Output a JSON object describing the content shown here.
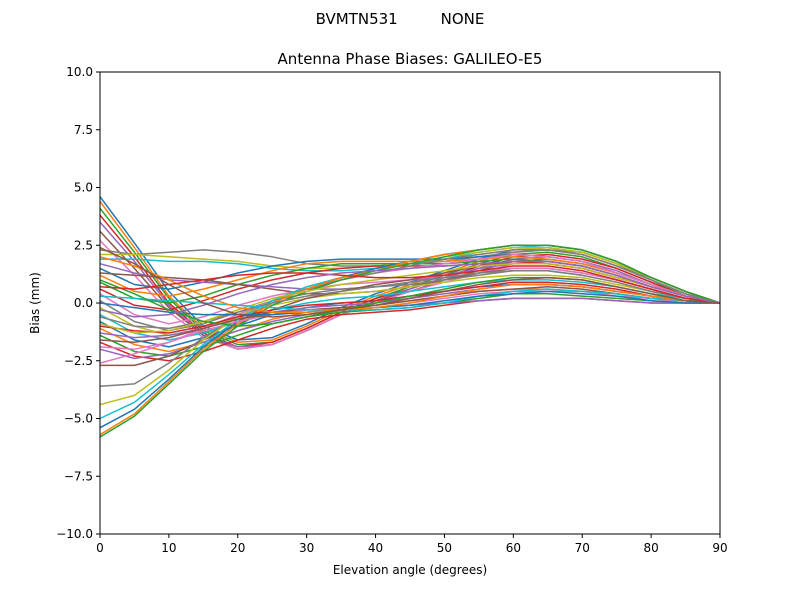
{
  "chart_data": {
    "type": "line",
    "suptitle": "BVMTN531         NONE",
    "title": "Antenna Phase Biases: GALILEO-E5",
    "xlabel": "Elevation angle (degrees)",
    "ylabel": "Bias (mm)",
    "xlim": [
      0,
      90
    ],
    "ylim": [
      -10,
      10
    ],
    "xticks": [
      "0",
      "10",
      "20",
      "30",
      "40",
      "50",
      "60",
      "70",
      "80",
      "90"
    ],
    "yticks": [
      "−10.0",
      "−7.5",
      "−5.0",
      "−2.5",
      "0.0",
      "2.5",
      "5.0",
      "7.5",
      "10.0"
    ],
    "grid": false,
    "x": [
      0,
      5,
      10,
      15,
      20,
      25,
      30,
      35,
      40,
      45,
      50,
      55,
      60,
      65,
      70,
      75,
      80,
      85,
      90
    ],
    "palette": [
      "#1f77b4",
      "#ff7f0e",
      "#2ca02c",
      "#d62728",
      "#9467bd",
      "#8c564b",
      "#e377c2",
      "#7f7f7f",
      "#bcbd22",
      "#17becf"
    ],
    "series": [
      {
        "values": [
          4.6,
          2.6,
          0.5,
          -1.0,
          -1.6,
          -1.5,
          -0.9,
          -0.2,
          0.4,
          0.9,
          1.4,
          1.9,
          2.3,
          2.4,
          2.2,
          1.7,
          1.0,
          0.4,
          0.0
        ]
      },
      {
        "values": [
          4.4,
          2.4,
          0.3,
          -1.1,
          -1.7,
          -1.6,
          -1.0,
          -0.3,
          0.3,
          0.8,
          1.3,
          1.8,
          2.2,
          2.3,
          2.1,
          1.6,
          1.0,
          0.4,
          0.0
        ]
      },
      {
        "values": [
          4.1,
          2.2,
          0.2,
          -1.2,
          -1.8,
          -1.7,
          -1.1,
          -0.4,
          0.2,
          0.7,
          1.2,
          1.7,
          2.1,
          2.2,
          2.0,
          1.5,
          0.9,
          0.4,
          0.0
        ]
      },
      {
        "values": [
          3.8,
          2.0,
          0.0,
          -1.3,
          -1.9,
          -1.7,
          -1.1,
          -0.4,
          0.2,
          0.6,
          1.1,
          1.6,
          2.0,
          2.1,
          1.9,
          1.5,
          0.9,
          0.3,
          0.0
        ]
      },
      {
        "values": [
          3.5,
          1.8,
          -0.1,
          -1.4,
          -1.9,
          -1.8,
          -1.2,
          -0.5,
          0.1,
          0.6,
          1.1,
          1.5,
          1.9,
          2.0,
          1.8,
          1.4,
          0.8,
          0.3,
          0.0
        ]
      },
      {
        "values": [
          3.1,
          1.5,
          -0.2,
          -1.4,
          -2.0,
          -1.8,
          -1.2,
          -0.5,
          0.1,
          0.5,
          1.0,
          1.4,
          1.8,
          1.9,
          1.7,
          1.3,
          0.8,
          0.3,
          0.0
        ]
      },
      {
        "values": [
          2.7,
          1.2,
          -0.4,
          -1.5,
          -2.0,
          -1.8,
          -1.2,
          -0.5,
          0.0,
          0.5,
          0.9,
          1.3,
          1.7,
          1.8,
          1.6,
          1.2,
          0.7,
          0.3,
          0.0
        ]
      },
      {
        "values": [
          2.3,
          2.1,
          2.2,
          2.3,
          2.2,
          2.0,
          1.7,
          1.6,
          1.6,
          1.7,
          1.8,
          2.0,
          2.2,
          2.3,
          2.2,
          1.7,
          1.0,
          0.4,
          0.0
        ]
      },
      {
        "values": [
          2.1,
          2.1,
          2.0,
          1.9,
          1.8,
          1.6,
          1.5,
          1.5,
          1.6,
          1.7,
          1.9,
          2.1,
          2.3,
          2.4,
          2.2,
          1.7,
          1.1,
          0.5,
          0.0
        ]
      },
      {
        "values": [
          1.9,
          1.9,
          1.8,
          1.8,
          1.7,
          1.5,
          1.4,
          1.4,
          1.5,
          1.7,
          1.9,
          2.2,
          2.4,
          2.5,
          2.3,
          1.8,
          1.1,
          0.5,
          0.0
        ]
      },
      {
        "values": [
          1.5,
          0.8,
          0.6,
          0.9,
          1.3,
          1.6,
          1.8,
          1.9,
          1.9,
          1.9,
          1.9,
          2.0,
          2.1,
          2.0,
          1.8,
          1.3,
          0.8,
          0.3,
          0.0
        ]
      },
      {
        "values": [
          1.2,
          0.5,
          0.3,
          0.6,
          1.0,
          1.4,
          1.7,
          1.8,
          1.8,
          1.8,
          1.8,
          1.9,
          2.0,
          1.9,
          1.7,
          1.3,
          0.8,
          0.3,
          0.0
        ]
      },
      {
        "values": [
          0.9,
          0.2,
          0.0,
          0.3,
          0.8,
          1.2,
          1.5,
          1.7,
          1.7,
          1.7,
          1.7,
          1.8,
          1.9,
          1.8,
          1.6,
          1.2,
          0.7,
          0.3,
          0.0
        ]
      },
      {
        "values": [
          0.6,
          -0.1,
          -0.3,
          0.1,
          0.6,
          1.0,
          1.3,
          1.5,
          1.6,
          1.6,
          1.6,
          1.7,
          1.8,
          1.7,
          1.5,
          1.1,
          0.7,
          0.3,
          0.0
        ]
      },
      {
        "values": [
          1.7,
          1.3,
          1.0,
          0.9,
          0.8,
          0.7,
          0.6,
          0.6,
          0.7,
          0.9,
          1.2,
          1.5,
          1.7,
          1.7,
          1.5,
          1.1,
          0.7,
          0.3,
          0.0
        ]
      },
      {
        "values": [
          1.3,
          1.2,
          1.1,
          1.0,
          0.8,
          0.6,
          0.4,
          0.4,
          0.5,
          0.7,
          1.0,
          1.3,
          1.5,
          1.5,
          1.3,
          1.0,
          0.6,
          0.2,
          0.0
        ]
      },
      {
        "values": [
          0.4,
          -0.5,
          -0.9,
          -0.6,
          -0.1,
          0.3,
          0.6,
          0.8,
          0.9,
          1.0,
          1.2,
          1.4,
          1.5,
          1.5,
          1.3,
          1.0,
          0.6,
          0.2,
          0.0
        ]
      },
      {
        "values": [
          0.1,
          -0.8,
          -1.2,
          -0.9,
          -0.4,
          0.1,
          0.4,
          0.6,
          0.7,
          0.8,
          1.0,
          1.2,
          1.4,
          1.4,
          1.2,
          0.9,
          0.5,
          0.2,
          0.0
        ]
      },
      {
        "values": [
          -0.2,
          -1.0,
          -1.4,
          -1.1,
          -0.6,
          -0.1,
          0.2,
          0.4,
          0.5,
          0.7,
          0.9,
          1.1,
          1.2,
          1.2,
          1.1,
          0.8,
          0.5,
          0.2,
          0.0
        ]
      },
      {
        "values": [
          -0.5,
          -1.3,
          -1.6,
          -1.3,
          -0.8,
          -0.3,
          0.0,
          0.2,
          0.3,
          0.5,
          0.7,
          0.9,
          1.0,
          1.0,
          0.9,
          0.7,
          0.4,
          0.2,
          0.0
        ]
      },
      {
        "values": [
          -0.8,
          -1.6,
          -1.9,
          -1.5,
          -1.0,
          -0.5,
          -0.2,
          0.0,
          0.1,
          0.3,
          0.5,
          0.7,
          0.8,
          0.8,
          0.7,
          0.5,
          0.3,
          0.1,
          0.0
        ]
      },
      {
        "values": [
          -1.1,
          -1.8,
          -2.1,
          -1.7,
          -1.2,
          -0.7,
          -0.4,
          -0.2,
          -0.1,
          0.1,
          0.3,
          0.5,
          0.6,
          0.6,
          0.5,
          0.4,
          0.2,
          0.1,
          0.0
        ]
      },
      {
        "values": [
          -1.4,
          -2.1,
          -2.3,
          -1.9,
          -1.4,
          -0.9,
          -0.6,
          -0.4,
          -0.3,
          -0.2,
          0.0,
          0.2,
          0.4,
          0.4,
          0.3,
          0.2,
          0.1,
          0.0,
          0.0
        ]
      },
      {
        "values": [
          -1.7,
          -2.3,
          -2.5,
          -2.1,
          -1.6,
          -1.1,
          -0.7,
          -0.5,
          -0.4,
          -0.3,
          -0.1,
          0.1,
          0.2,
          0.2,
          0.2,
          0.1,
          0.0,
          0.0,
          0.0
        ]
      },
      {
        "values": [
          -2.0,
          -2.4,
          -2.2,
          -1.7,
          -1.2,
          -0.8,
          -0.5,
          -0.3,
          -0.2,
          -0.1,
          0.0,
          0.1,
          0.2,
          0.2,
          0.2,
          0.1,
          0.0,
          0.0,
          0.0
        ]
      },
      {
        "values": [
          -2.7,
          -2.7,
          -2.3,
          -1.6,
          -0.9,
          -0.3,
          0.2,
          0.5,
          0.8,
          1.0,
          1.3,
          1.6,
          1.8,
          1.8,
          1.6,
          1.2,
          0.7,
          0.3,
          0.0
        ]
      },
      {
        "values": [
          -2.6,
          -2.2,
          -1.7,
          -1.1,
          -0.5,
          0.1,
          0.6,
          1.0,
          1.3,
          1.5,
          1.7,
          1.9,
          2.1,
          2.0,
          1.8,
          1.3,
          0.8,
          0.3,
          0.0
        ]
      },
      {
        "values": [
          -3.6,
          -3.5,
          -2.6,
          -1.5,
          -0.6,
          0.1,
          0.6,
          1.0,
          1.3,
          1.6,
          1.9,
          2.1,
          2.3,
          2.3,
          2.1,
          1.6,
          1.0,
          0.4,
          0.0
        ]
      },
      {
        "values": [
          -4.4,
          -4.0,
          -2.9,
          -1.6,
          -0.6,
          0.1,
          0.7,
          1.1,
          1.4,
          1.7,
          2.0,
          2.2,
          2.4,
          2.4,
          2.2,
          1.7,
          1.1,
          0.5,
          0.0
        ]
      },
      {
        "values": [
          -5.0,
          -4.3,
          -3.1,
          -1.8,
          -0.7,
          0.1,
          0.7,
          1.1,
          1.5,
          1.8,
          2.1,
          2.3,
          2.5,
          2.5,
          2.3,
          1.8,
          1.1,
          0.5,
          0.0
        ]
      },
      {
        "values": [
          -5.4,
          -4.6,
          -3.3,
          -1.9,
          -0.8,
          0.0,
          0.6,
          1.1,
          1.5,
          1.8,
          2.1,
          2.3,
          2.5,
          2.5,
          2.3,
          1.8,
          1.1,
          0.5,
          0.0
        ]
      },
      {
        "values": [
          -5.7,
          -4.8,
          -3.4,
          -2.0,
          -0.9,
          0.0,
          0.6,
          1.1,
          1.4,
          1.8,
          2.1,
          2.3,
          2.5,
          2.5,
          2.3,
          1.8,
          1.1,
          0.5,
          0.0
        ]
      },
      {
        "values": [
          -5.8,
          -4.9,
          -3.5,
          -2.1,
          -1.0,
          -0.1,
          0.5,
          1.0,
          1.4,
          1.7,
          2.0,
          2.3,
          2.5,
          2.5,
          2.3,
          1.8,
          1.1,
          0.5,
          0.0
        ]
      },
      {
        "values": [
          -1.0,
          -1.2,
          -1.3,
          -1.0,
          -0.6,
          -0.3,
          -0.1,
          0.0,
          0.1,
          0.3,
          0.5,
          0.7,
          0.9,
          0.9,
          0.8,
          0.6,
          0.3,
          0.1,
          0.0
        ]
      },
      {
        "values": [
          -1.3,
          -1.5,
          -1.4,
          -1.1,
          -0.7,
          -0.4,
          -0.2,
          -0.1,
          0.0,
          0.2,
          0.4,
          0.6,
          0.8,
          0.8,
          0.7,
          0.5,
          0.3,
          0.1,
          0.0
        ]
      },
      {
        "values": [
          -1.6,
          -1.7,
          -1.5,
          -1.1,
          -0.7,
          -0.4,
          -0.3,
          -0.2,
          -0.1,
          0.1,
          0.3,
          0.5,
          0.6,
          0.7,
          0.6,
          0.4,
          0.2,
          0.1,
          0.0
        ]
      },
      {
        "values": [
          -1.9,
          -2.0,
          -1.7,
          -1.2,
          -0.8,
          -0.5,
          -0.3,
          -0.3,
          -0.2,
          0.0,
          0.2,
          0.4,
          0.5,
          0.5,
          0.5,
          0.3,
          0.2,
          0.0,
          0.0
        ]
      },
      {
        "values": [
          -0.6,
          -1.0,
          -1.1,
          -0.8,
          -0.4,
          0.0,
          0.3,
          0.5,
          0.7,
          0.9,
          1.1,
          1.3,
          1.4,
          1.4,
          1.2,
          0.9,
          0.5,
          0.2,
          0.0
        ]
      },
      {
        "values": [
          -0.9,
          -1.3,
          -1.2,
          -0.8,
          -0.3,
          0.2,
          0.5,
          0.8,
          1.0,
          1.2,
          1.4,
          1.6,
          1.7,
          1.7,
          1.5,
          1.1,
          0.7,
          0.3,
          0.0
        ]
      },
      {
        "values": [
          0.3,
          0.2,
          0.1,
          0.0,
          -0.1,
          -0.2,
          -0.3,
          -0.3,
          -0.3,
          -0.2,
          0.0,
          0.3,
          0.5,
          0.6,
          0.5,
          0.4,
          0.2,
          0.1,
          0.0
        ]
      },
      {
        "values": [
          0.0,
          -0.2,
          -0.4,
          -0.5,
          -0.5,
          -0.5,
          -0.4,
          -0.3,
          -0.2,
          -0.1,
          0.1,
          0.3,
          0.4,
          0.5,
          0.4,
          0.3,
          0.1,
          0.0,
          0.0
        ]
      },
      {
        "values": [
          2.0,
          1.6,
          1.0,
          0.3,
          -0.2,
          -0.4,
          -0.4,
          -0.3,
          -0.2,
          0.0,
          0.3,
          0.6,
          0.8,
          0.8,
          0.7,
          0.5,
          0.3,
          0.1,
          0.0
        ]
      },
      {
        "values": [
          1.0,
          0.4,
          -0.3,
          -0.8,
          -1.0,
          -0.9,
          -0.6,
          -0.3,
          0.0,
          0.3,
          0.6,
          0.9,
          1.1,
          1.1,
          1.0,
          0.7,
          0.4,
          0.1,
          0.0
        ]
      },
      {
        "values": [
          0.7,
          0.6,
          0.8,
          1.0,
          1.2,
          1.3,
          1.3,
          1.2,
          1.1,
          1.1,
          1.2,
          1.4,
          1.6,
          1.6,
          1.4,
          1.0,
          0.6,
          0.2,
          0.0
        ]
      },
      {
        "values": [
          -0.3,
          -0.6,
          -0.5,
          -0.1,
          0.4,
          0.8,
          1.1,
          1.3,
          1.4,
          1.5,
          1.6,
          1.7,
          1.8,
          1.8,
          1.6,
          1.2,
          0.7,
          0.3,
          0.0
        ]
      },
      {
        "values": [
          2.4,
          1.7,
          0.8,
          0.0,
          -0.5,
          -0.6,
          -0.5,
          -0.3,
          -0.1,
          0.2,
          0.5,
          0.8,
          1.0,
          1.1,
          1.0,
          0.7,
          0.4,
          0.1,
          0.0
        ]
      }
    ]
  }
}
